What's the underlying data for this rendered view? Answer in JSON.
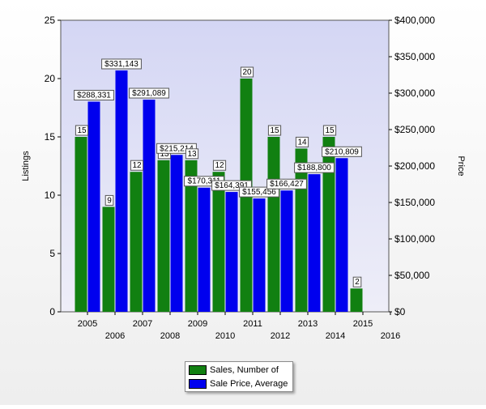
{
  "chart_data": {
    "type": "bar",
    "categories": [
      "2005",
      "2006",
      "2007",
      "2008",
      "2009",
      "2010",
      "2011",
      "2012",
      "2013",
      "2014",
      "2015",
      "2016"
    ],
    "ylabel": "Listings",
    "y2label": "Price",
    "ylim": [
      0,
      25
    ],
    "y2lim": [
      0,
      400000
    ],
    "yticks": [
      "0",
      "5",
      "10",
      "15",
      "20",
      "25"
    ],
    "y2ticks": [
      "$0",
      "$50,000",
      "$100,000",
      "$150,000",
      "$200,000",
      "$250,000",
      "$300,000",
      "$350,000",
      "$400,000"
    ],
    "grid": false,
    "legend_position": "bottom",
    "series": [
      {
        "name": "Sales, Number of",
        "axis": "left",
        "color": "#118011",
        "values": [
          15,
          9,
          12,
          13,
          13,
          12,
          20,
          15,
          14,
          15,
          2,
          null
        ],
        "labels": [
          "15",
          "9",
          "12",
          "13",
          "13",
          "12",
          "20",
          "15",
          "14",
          "15",
          "2",
          ""
        ]
      },
      {
        "name": "Sale Price, Average",
        "axis": "right",
        "color": "#0000ee",
        "values": [
          288331,
          331143,
          291089,
          215214,
          170311,
          164391,
          155456,
          166427,
          188800,
          210809,
          null,
          null
        ],
        "labels": [
          "$288,331",
          "$331,143",
          "$291,089",
          "$215,214",
          "$170,311",
          "$164,391",
          "$155,456",
          "$166,427",
          "$188,800",
          "$210,809",
          "",
          ""
        ]
      }
    ]
  }
}
